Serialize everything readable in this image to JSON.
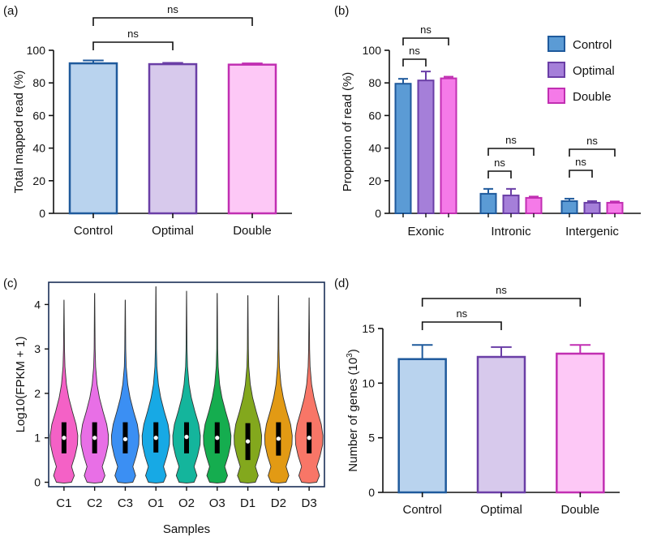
{
  "chart_data": [
    {
      "panel": "(a)",
      "type": "bar",
      "categories": [
        "Control",
        "Optimal",
        "Double"
      ],
      "values": [
        92,
        91.5,
        91.2
      ],
      "errors": [
        1.8,
        0.8,
        0.8
      ],
      "ylabel": "Total mapped read (%)",
      "ylim": [
        0,
        100
      ],
      "yticks": [
        0,
        20,
        40,
        60,
        80,
        100
      ],
      "brackets": [
        {
          "from": 0,
          "to": 1,
          "label": "ns"
        },
        {
          "from": 0,
          "to": 2,
          "label": "ns"
        }
      ],
      "fills": [
        "#b9d3ee",
        "#d7c9ec",
        "#fdc8f6"
      ],
      "strokes": [
        "#1f5a9c",
        "#6a3ea6",
        "#c12fb2"
      ]
    },
    {
      "panel": "(b)",
      "type": "bar",
      "categories": [
        "Exonic",
        "Intronic",
        "Intergenic"
      ],
      "series": [
        {
          "name": "Control",
          "values": [
            79.5,
            12,
            7.5
          ],
          "errors": [
            3,
            3,
            1.5
          ],
          "fill": "#5b9bd5",
          "stroke": "#1f5a9c"
        },
        {
          "name": "Optimal",
          "values": [
            81.5,
            11,
            6.5
          ],
          "errors": [
            5.5,
            4,
            1
          ],
          "fill": "#a57fd9",
          "stroke": "#6a3ea6"
        },
        {
          "name": "Double",
          "values": [
            82.8,
            9.5,
            6.5
          ],
          "errors": [
            1,
            0.8,
            0.8
          ],
          "fill": "#f57ae8",
          "stroke": "#c12fb2"
        }
      ],
      "ylabel": "Proportion of read (%)",
      "ylim": [
        0,
        100
      ],
      "yticks": [
        0,
        20,
        40,
        60,
        80,
        100
      ],
      "legend_placement": "top-right",
      "group_brackets": [
        [
          {
            "from": 0,
            "to": 1,
            "label": "ns"
          },
          {
            "from": 0,
            "to": 2,
            "label": "ns"
          }
        ],
        [
          {
            "from": 0,
            "to": 1,
            "label": "ns"
          },
          {
            "from": 0,
            "to": 2,
            "label": "ns"
          }
        ],
        [
          {
            "from": 0,
            "to": 1,
            "label": "ns"
          },
          {
            "from": 0,
            "to": 2,
            "label": "ns"
          }
        ]
      ]
    },
    {
      "panel": "(c)",
      "type": "violin",
      "categories": [
        "C1",
        "C2",
        "C3",
        "O1",
        "O2",
        "O3",
        "D1",
        "D2",
        "D3"
      ],
      "max": [
        4.1,
        4.25,
        4.1,
        4.4,
        4.3,
        4.25,
        4.2,
        4.2,
        4.15
      ],
      "median": [
        1.0,
        1.0,
        0.97,
        1.0,
        1.02,
        1.0,
        0.92,
        0.98,
        1.0
      ],
      "q1": [
        0.65,
        0.65,
        0.65,
        0.67,
        0.65,
        0.65,
        0.5,
        0.6,
        0.65
      ],
      "q3": [
        1.35,
        1.35,
        1.35,
        1.35,
        1.35,
        1.35,
        1.33,
        1.35,
        1.35
      ],
      "colors": [
        "#f461c6",
        "#e86fe6",
        "#3b8ff3",
        "#17a9e5",
        "#14b59c",
        "#15ad4f",
        "#83a81d",
        "#e29a14",
        "#f87667"
      ],
      "xlabel": "Samples",
      "ylabel": "Log10(FPKM + 1)",
      "ylim": [
        -0.1,
        4.5
      ],
      "yticks": [
        0,
        1,
        2,
        3,
        4
      ]
    },
    {
      "panel": "(d)",
      "type": "bar",
      "categories": [
        "Control",
        "Optimal",
        "Double"
      ],
      "values": [
        12.2,
        12.4,
        12.7
      ],
      "errors": [
        1.3,
        0.9,
        0.8
      ],
      "ylabel": "Number of genes (10",
      "ylabel_sup": "3",
      "ylabel_end": ")",
      "ylim": [
        0,
        15
      ],
      "yticks": [
        0,
        5,
        10,
        15
      ],
      "brackets": [
        {
          "from": 0,
          "to": 1,
          "label": "ns"
        },
        {
          "from": 0,
          "to": 2,
          "label": "ns"
        }
      ],
      "fills": [
        "#b9d3ee",
        "#d7c9ec",
        "#fdc8f6"
      ],
      "strokes": [
        "#1f5a9c",
        "#6a3ea6",
        "#c12fb2"
      ]
    }
  ]
}
